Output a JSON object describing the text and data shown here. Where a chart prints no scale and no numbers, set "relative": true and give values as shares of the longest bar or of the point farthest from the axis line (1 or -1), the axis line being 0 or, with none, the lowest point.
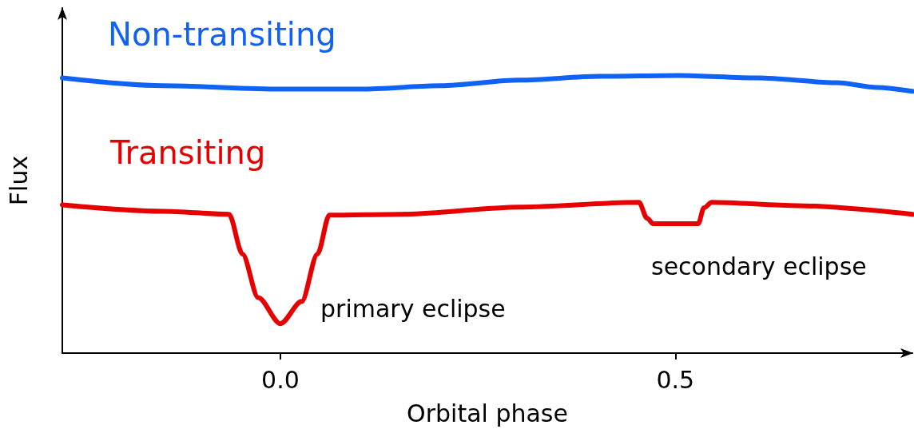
{
  "chart_data": {
    "type": "line",
    "relative": true,
    "xlabel": "Orbital phase",
    "ylabel": "Flux",
    "xlim": [
      -0.276,
      0.8
    ],
    "xticks": [
      {
        "value": 0,
        "label": "0.0"
      },
      0.5
    ],
    "grid": false,
    "legend": false,
    "marker": "none",
    "line_style": "solid",
    "series": [
      {
        "name": "Non-transiting",
        "color": "#0f62f5",
        "x": [
          -0.276,
          -0.149,
          0.0,
          0.102,
          0.203,
          0.303,
          0.404,
          0.504,
          0.604,
          0.705,
          0.755,
          0.8
        ],
        "values": [
          0.991,
          0.963,
          0.951,
          0.951,
          0.963,
          0.983,
          0.997,
          1.0,
          0.991,
          0.974,
          0.957,
          0.943
        ]
      },
      {
        "name": "Transiting",
        "color": "#e60000",
        "x": [
          -0.276,
          -0.149,
          -0.065,
          -0.048,
          -0.028,
          0,
          0.027,
          0.047,
          0.062,
          0.153,
          0.303,
          0.454,
          0.464,
          0.472,
          0.529,
          0.536,
          0.546,
          0.655,
          0.8
        ],
        "values": [
          0.534,
          0.511,
          0.5,
          0.357,
          0.2,
          0.106,
          0.186,
          0.357,
          0.497,
          0.5,
          0.526,
          0.543,
          0.486,
          0.466,
          0.466,
          0.523,
          0.543,
          0.531,
          0.5
        ]
      }
    ],
    "annotations": [
      "primary eclipse",
      "secondary eclipse"
    ]
  }
}
